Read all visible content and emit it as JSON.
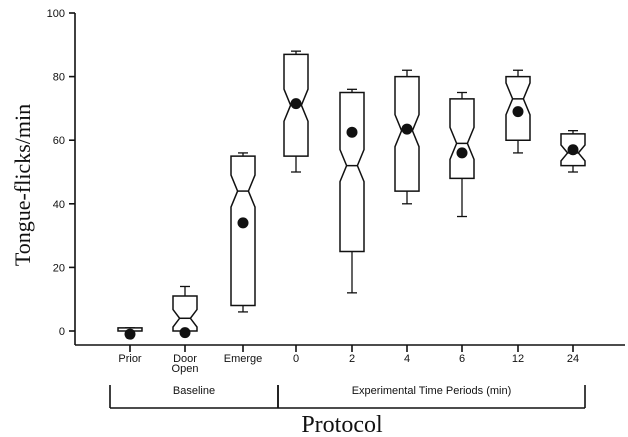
{
  "chart_data": {
    "type": "box",
    "ylabel": "Tongue-flicks/min",
    "xlabel": "Protocol",
    "ylim": [
      0,
      100
    ],
    "yticks": [
      0,
      20,
      40,
      60,
      80,
      100
    ],
    "categories": [
      "Prior",
      "Door Open",
      "Emerge",
      "0",
      "2",
      "4",
      "6",
      "12",
      "24"
    ],
    "groups": [
      {
        "label": "Baseline",
        "categories": [
          "Prior",
          "Door Open",
          "Emerge"
        ]
      },
      {
        "label": "Experimental Time Periods (min)",
        "categories": [
          "0",
          "2",
          "4",
          "6",
          "12",
          "24"
        ]
      }
    ],
    "boxes": [
      {
        "category": "Prior",
        "min": 0,
        "q1": 0,
        "median": 0,
        "q3": 1,
        "max": 1,
        "mean": -1
      },
      {
        "category": "Door Open",
        "min": 0,
        "q1": 0,
        "median": 4,
        "q3": 11,
        "max": 14,
        "mean": -0.5
      },
      {
        "category": "Emerge",
        "min": 6,
        "q1": 8,
        "median": 44,
        "q3": 55,
        "max": 56,
        "mean": 34
      },
      {
        "category": "0",
        "min": 50,
        "q1": 55,
        "median": 71,
        "q3": 87,
        "max": 88,
        "mean": 71.5
      },
      {
        "category": "2",
        "min": 12,
        "q1": 25,
        "median": 52,
        "q3": 75,
        "max": 76,
        "mean": 62.5
      },
      {
        "category": "4",
        "min": 40,
        "q1": 44,
        "median": 63,
        "q3": 80,
        "max": 82,
        "mean": 63.5
      },
      {
        "category": "6",
        "min": 36,
        "q1": 48,
        "median": 59,
        "q3": 73,
        "max": 75,
        "mean": 56
      },
      {
        "category": "12",
        "min": 56,
        "q1": 60,
        "median": 73,
        "q3": 80,
        "max": 82,
        "mean": 69
      },
      {
        "category": "24",
        "min": 50,
        "q1": 52,
        "median": 56,
        "q3": 62,
        "max": 63,
        "mean": 57
      }
    ],
    "grid": false,
    "legend": "none"
  },
  "colors": {
    "ink": "#111111",
    "background": "#ffffff"
  }
}
